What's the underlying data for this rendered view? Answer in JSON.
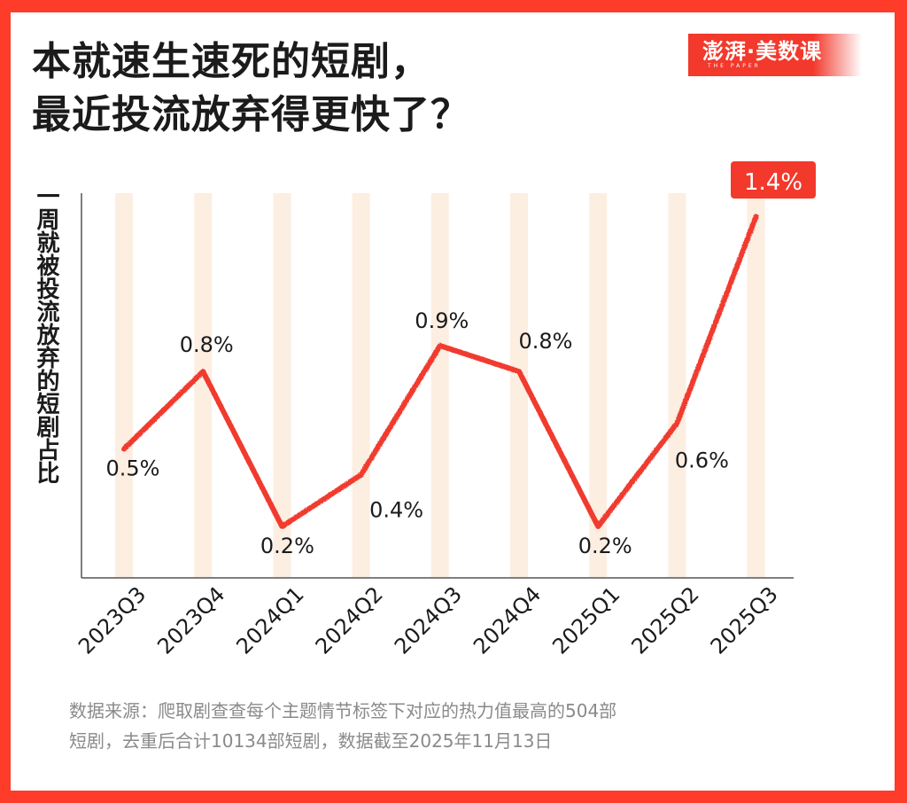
{
  "title": {
    "line1": "本就速生速死的短剧，",
    "line2": "最近投流放弃得更快了？"
  },
  "logo": {
    "main": "澎湃·美数课",
    "sub": "THE PAPER"
  },
  "source_note": {
    "line1": "数据来源：爬取剧查查每个主题情节标签下对应的热力值最高的504部",
    "line2": "短剧，去重后合计10134部短剧，数据截至2025年11月13日"
  },
  "colors": {
    "frame": "#ff3b2a",
    "line": "#f03a2e",
    "band": "#fdeee2",
    "highlight_badge": "#f2392c",
    "text": "#1b1b1b",
    "source_text": "#8a8a8a"
  },
  "chart_data": {
    "type": "line",
    "title": "本就速生速死的短剧，最近投流放弃得更快了？",
    "xlabel": "",
    "ylabel": "一周就被投流放弃的短剧占比",
    "categories": [
      "2023Q3",
      "2023Q4",
      "2024Q1",
      "2024Q2",
      "2024Q3",
      "2024Q4",
      "2025Q1",
      "2025Q2",
      "2025Q3"
    ],
    "series": [
      {
        "name": "一周就被投流放弃的短剧占比",
        "values": [
          0.5,
          0.8,
          0.2,
          0.4,
          0.9,
          0.8,
          0.2,
          0.6,
          1.4
        ],
        "labels": [
          "0.5%",
          "0.8%",
          "0.2%",
          "0.4%",
          "0.9%",
          "0.8%",
          "0.2%",
          "0.6%",
          "1.4%"
        ]
      }
    ],
    "highlight": {
      "category": "2025Q3",
      "label": "1.4%"
    },
    "ylim": [
      0,
      1.5
    ],
    "grid": false,
    "legend": "none",
    "x_tick_rotation": -45
  }
}
